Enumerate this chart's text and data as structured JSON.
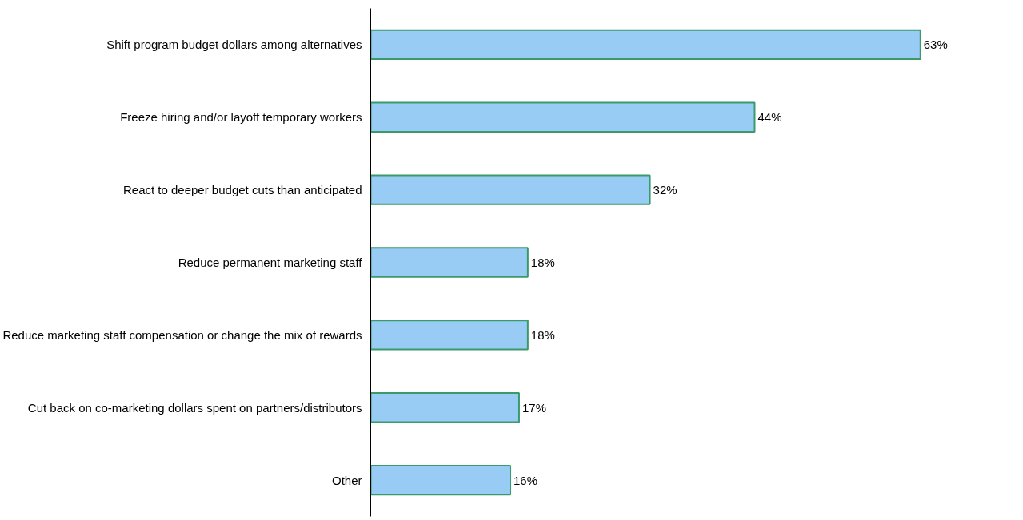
{
  "chart_data": {
    "type": "bar",
    "orientation": "horizontal",
    "categories": [
      "Shift program budget dollars among alternatives",
      "Freeze hiring and/or layoff temporary workers",
      "React to deeper budget cuts than anticipated",
      "Reduce permanent marketing staff",
      "Reduce marketing staff compensation or change the mix of rewards",
      "Cut back on co-marketing dollars spent on partners/distributors",
      "Other"
    ],
    "values": [
      63,
      44,
      32,
      18,
      18,
      17,
      16
    ],
    "value_labels": [
      "63%",
      "44%",
      "32%",
      "18%",
      "18%",
      "17%",
      "16%"
    ],
    "color": "#99ccf5",
    "tick_labels": "y"
  }
}
